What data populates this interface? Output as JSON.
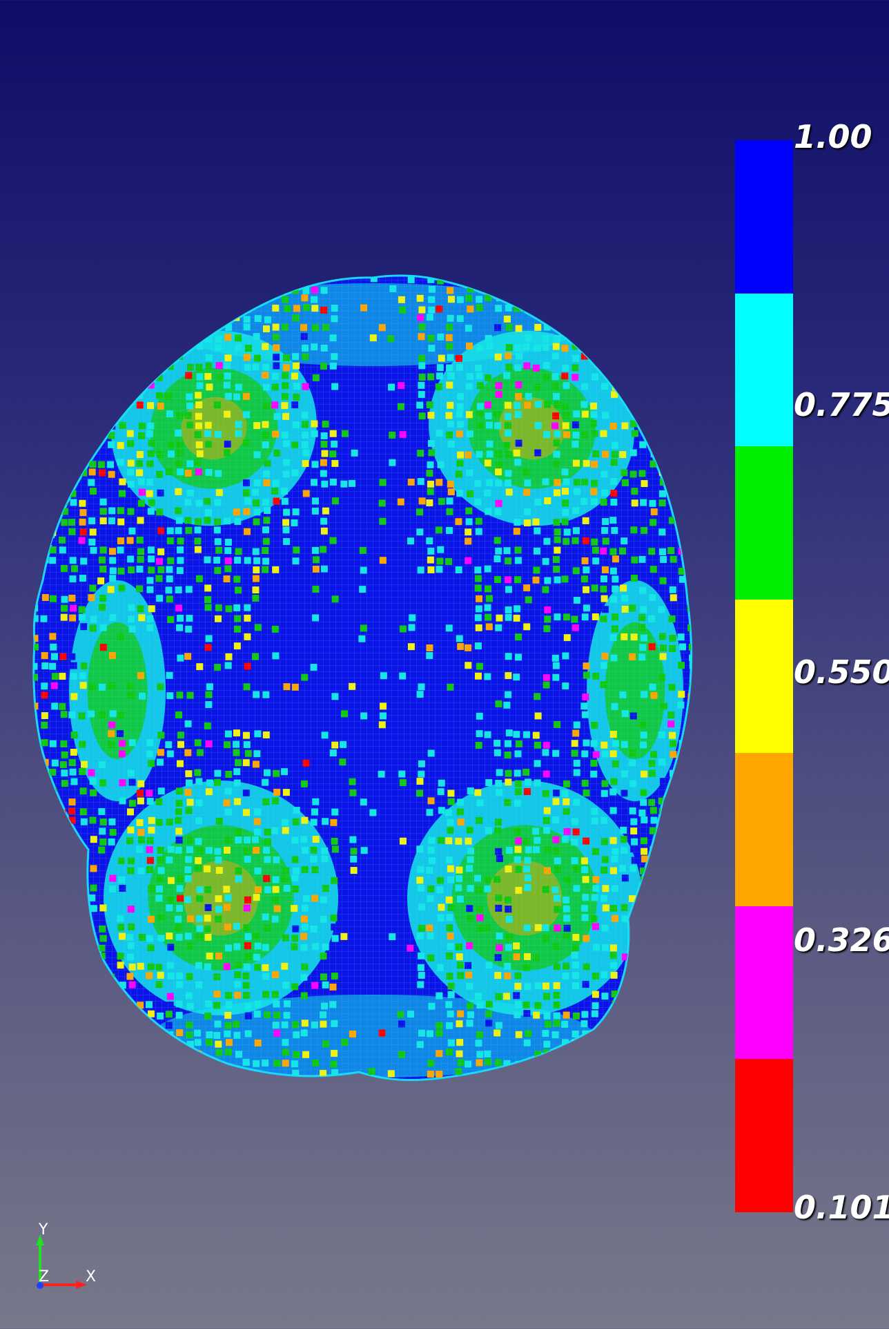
{
  "colors": {
    "background_top": "#0d0d66",
    "background_bottom": "#78788a",
    "mesh_base": "#0a14e6",
    "mesh_cyan": "#14e6e6",
    "mesh_green": "#11c811",
    "mesh_yellow": "#f2f20d",
    "mesh_orange": "#ffa500",
    "mesh_magenta": "#ff00ff",
    "mesh_red": "#ff0000",
    "axis_x": "#ff2020",
    "axis_y": "#20e020",
    "axis_z": "#2040ff"
  },
  "color_legend": {
    "bands": [
      "#0000ff",
      "#00ffff",
      "#00ee00",
      "#ffff00",
      "#ffa500",
      "#ff00ff",
      "#ff0000"
    ],
    "tick_labels": [
      "1.00",
      "0.775",
      "0.550",
      "0.326",
      "0.101"
    ],
    "range": [
      0.101,
      1.0
    ]
  },
  "orientation_axes": {
    "x_label": "X",
    "y_label": "Y",
    "z_label": "Z"
  },
  "mesh": {
    "subject": "head-surface-mesh",
    "view": "top"
  }
}
